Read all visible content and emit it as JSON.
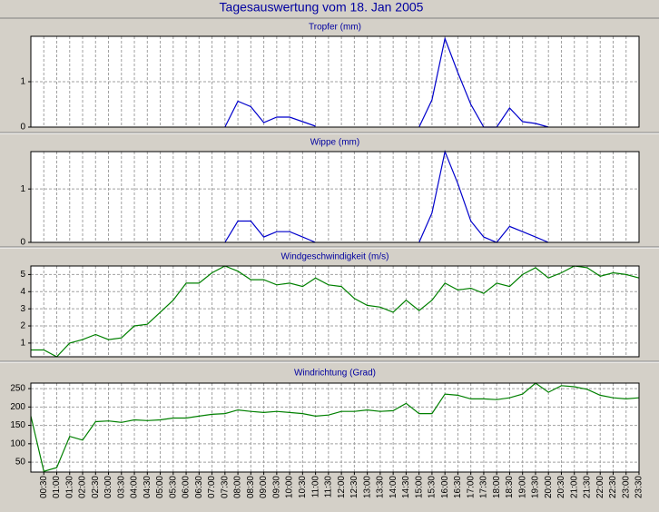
{
  "title": "Tagesauswertung vom 18. Jan 2005",
  "chart_data": [
    {
      "type": "line",
      "title": "Tropfer (mm)",
      "color": "#0000cc",
      "ylim": [
        0,
        2
      ],
      "yticks": [
        0,
        1
      ],
      "grid": true,
      "values": [
        null,
        null,
        null,
        null,
        null,
        null,
        null,
        null,
        null,
        null,
        null,
        null,
        null,
        null,
        null,
        0,
        0.57,
        0.45,
        0.1,
        0.22,
        0.22,
        0.12,
        0.02,
        null,
        null,
        null,
        null,
        null,
        null,
        null,
        0,
        0.6,
        1.95,
        1.2,
        0.5,
        0,
        0,
        0.42,
        0.12,
        0.08,
        0,
        null,
        null,
        null,
        null,
        null,
        null,
        null
      ]
    },
    {
      "type": "line",
      "title": "Wippe (mm)",
      "color": "#0000cc",
      "ylim": [
        0,
        1.7
      ],
      "yticks": [
        0,
        1
      ],
      "grid": true,
      "values": [
        null,
        null,
        null,
        null,
        null,
        null,
        null,
        null,
        null,
        null,
        null,
        null,
        null,
        null,
        null,
        0,
        0.4,
        0.4,
        0.1,
        0.2,
        0.2,
        0.1,
        0,
        null,
        null,
        null,
        null,
        null,
        null,
        null,
        0,
        0.55,
        1.7,
        1.1,
        0.4,
        0.1,
        0,
        0.3,
        0.2,
        0.1,
        0,
        null,
        null,
        null,
        null,
        null,
        null,
        null
      ]
    },
    {
      "type": "line",
      "title": "Windgeschwindigkeit (m/s)",
      "color": "#008000",
      "ylim": [
        0.2,
        5.5
      ],
      "yticks": [
        1,
        2,
        3,
        4,
        5
      ],
      "grid": true,
      "values": [
        0.6,
        0.6,
        0.2,
        1.0,
        1.2,
        1.5,
        1.2,
        1.3,
        2.0,
        2.1,
        2.8,
        3.5,
        4.5,
        4.5,
        5.1,
        5.5,
        5.2,
        4.7,
        4.7,
        4.4,
        4.5,
        4.3,
        4.8,
        4.4,
        4.3,
        3.6,
        3.2,
        3.1,
        2.8,
        3.5,
        2.9,
        3.5,
        4.5,
        4.1,
        4.2,
        3.9,
        4.5,
        4.3,
        5.0,
        5.4,
        4.8,
        5.1,
        5.5,
        5.4,
        4.9,
        5.1,
        5.0,
        4.8
      ]
    },
    {
      "type": "line",
      "title": "Windrichtung (Grad)",
      "color": "#008000",
      "ylim": [
        23,
        265
      ],
      "yticks": [
        50,
        100,
        150,
        200,
        250
      ],
      "grid": true,
      "categories": [
        null,
        "00:30",
        "01:00",
        "01:30",
        "02:00",
        "02:30",
        "03:00",
        "03:30",
        "04:00",
        "04:30",
        "05:00",
        "05:30",
        "06:00",
        "06:30",
        "07:00",
        "07:30",
        "08:00",
        "08:30",
        "09:00",
        "09:30",
        "10:00",
        "10:30",
        "11:00",
        "11:30",
        "12:00",
        "12:30",
        "13:00",
        "13:30",
        "14:00",
        "14:30",
        "15:00",
        "15:30",
        "16:00",
        "16:30",
        "17:00",
        "17:30",
        "18:00",
        "18:30",
        "19:00",
        "19:30",
        "20:00",
        "20:30",
        "21:00",
        "21:30",
        "22:00",
        "22:30",
        "23:00",
        "23:30"
      ],
      "values": [
        175,
        25,
        35,
        120,
        110,
        160,
        162,
        158,
        165,
        163,
        165,
        170,
        170,
        175,
        180,
        182,
        192,
        188,
        185,
        188,
        185,
        182,
        175,
        178,
        188,
        188,
        192,
        188,
        190,
        210,
        182,
        182,
        235,
        232,
        222,
        222,
        220,
        225,
        235,
        265,
        240,
        258,
        255,
        248,
        232,
        225,
        222,
        225
      ]
    }
  ]
}
